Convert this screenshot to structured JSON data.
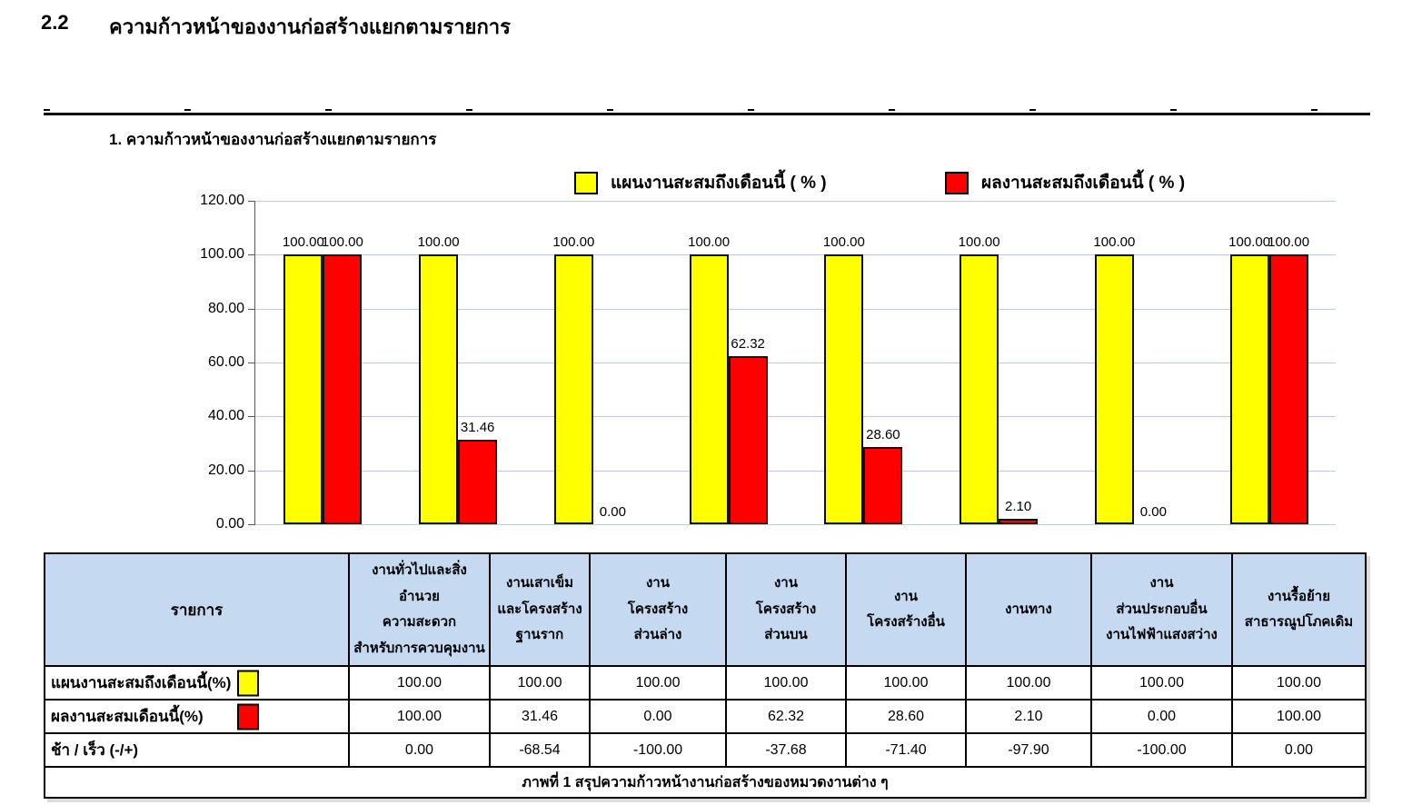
{
  "document": {
    "section_number": "2.2",
    "section_title": "ความก้าวหน้าของงานก่อสร้างแยกตามรายการ",
    "figure_heading": "1. ความก้าวหน้าของงานก่อสร้างแยกตามรายการ"
  },
  "colors": {
    "plan_series": "#FFFF00",
    "actual_series": "#FF0000",
    "table_header_bg": "#C5D9F1",
    "gridline": "#B8CCE4"
  },
  "chart_data": {
    "type": "bar",
    "title": "1. ความก้าวหน้าของงานก่อสร้างแยกตามรายการ",
    "categories": [
      "งานทั่วไปและสิ่งอำนวยความสะดวกสำหรับการควบคุมงาน",
      "งานเสาเข็มและโครงสร้างฐานราก",
      "งานโครงสร้างส่วนล่าง",
      "งานโครงสร้างส่วนบน",
      "งานโครงสร้างอื่น",
      "งานทาง",
      "งานส่วนประกอบอื่น งานไฟฟ้าแสงสว่าง",
      "งานรื้อย้ายสาธารณูปโภคเดิม"
    ],
    "series": [
      {
        "name": "แผนงานสะสมถึงเดือนนี้ ( % )",
        "color": "#FFFF00",
        "values": [
          100,
          100,
          100,
          100,
          100,
          100,
          100,
          100
        ],
        "labels": [
          "100.00",
          "100.00",
          "100.00",
          "100.00",
          "100.00",
          "100.00",
          "100.00",
          "100.00"
        ]
      },
      {
        "name": "ผลงานสะสมถึงเดือนนี้ ( % )",
        "color": "#FF0000",
        "values": [
          100,
          31.46,
          0,
          62.32,
          28.6,
          2.1,
          0,
          100
        ],
        "labels": [
          "100.00",
          "31.46",
          "0.00",
          "62.32",
          "28.60",
          "2.10",
          "0.00",
          "100.00"
        ]
      }
    ],
    "xlabel": "",
    "ylabel": "",
    "ylim": [
      0,
      120
    ],
    "yticks": [
      {
        "value": 120,
        "label": "120.00"
      },
      {
        "value": 100,
        "label": "100.00"
      },
      {
        "value": 80,
        "label": "80.00"
      },
      {
        "value": 60,
        "label": "60.00"
      },
      {
        "value": 40,
        "label": "40.00"
      },
      {
        "value": 20,
        "label": "20.00"
      },
      {
        "value": 0,
        "label": "0.00"
      }
    ],
    "grid": true,
    "legend_position": "top"
  },
  "table": {
    "row_header": "รายการ",
    "column_headers": [
      [
        "งานทั่วไปและสิ่งอำนวย",
        "ความสะดวก",
        "สำหรับการควบคุมงาน"
      ],
      [
        "งานเสาเข็ม",
        "และโครงสร้าง",
        "ฐานราก"
      ],
      [
        "งาน",
        "โครงสร้าง",
        "ส่วนล่าง"
      ],
      [
        "งาน",
        "โครงสร้าง",
        "ส่วนบน"
      ],
      [
        "งาน",
        "โครงสร้างอื่น"
      ],
      [
        "งานทาง"
      ],
      [
        "งาน",
        "ส่วนประกอบอื่น",
        "งานไฟฟ้าแสงสว่าง"
      ],
      [
        "งานรื้อย้าย",
        "สาธารณูปโภคเดิม"
      ]
    ],
    "rows": [
      {
        "label": "แผนงานสะสมถึงเดือนนี้(%)",
        "swatch_color": "#FFFF00",
        "values": [
          "100.00",
          "100.00",
          "100.00",
          "100.00",
          "100.00",
          "100.00",
          "100.00",
          "100.00"
        ]
      },
      {
        "label": "ผลงานสะสมเดือนนี้(%)",
        "swatch_color": "#FF0000",
        "values": [
          "100.00",
          "31.46",
          "0.00",
          "62.32",
          "28.60",
          "2.10",
          "0.00",
          "100.00"
        ]
      },
      {
        "label": "ช้า / เร็ว  (-/+)",
        "swatch_color": null,
        "values": [
          "0.00",
          "-68.54",
          "-100.00",
          "-37.68",
          "-71.40",
          "-97.90",
          "-100.00",
          "0.00"
        ]
      }
    ],
    "caption": "ภาพที่ 1 สรุปความก้าวหน้างานก่อสร้างของหมวดงานต่าง ๆ"
  }
}
